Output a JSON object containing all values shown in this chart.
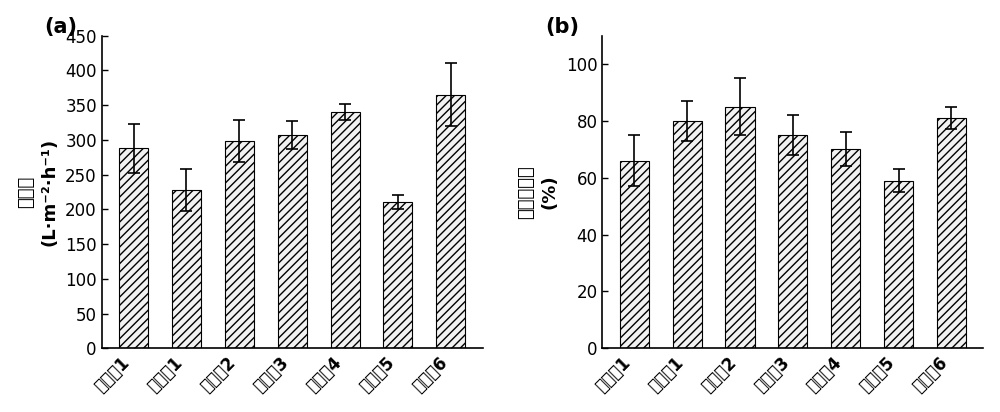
{
  "categories": [
    "对比例1",
    "实施例1",
    "实施例2",
    "实施例3",
    "实施例4",
    "实施例5",
    "实施例6"
  ],
  "flux_values": [
    288,
    228,
    298,
    307,
    340,
    210,
    365
  ],
  "flux_errors": [
    35,
    30,
    30,
    20,
    12,
    10,
    45
  ],
  "flux_ylabel_main": "水通量",
  "flux_ylabel_unit": "(L·m⁻²·h⁻¹)",
  "flux_ylim": [
    0,
    450
  ],
  "flux_yticks": [
    0,
    50,
    100,
    150,
    200,
    250,
    300,
    350,
    400,
    450
  ],
  "recovery_values": [
    66,
    80,
    85,
    75,
    70,
    59,
    81
  ],
  "recovery_errors": [
    9,
    7,
    10,
    7,
    6,
    4,
    4
  ],
  "recovery_ylabel_main": "通量恢复率",
  "recovery_ylabel_unit": "(%)",
  "recovery_ylim": [
    0,
    110
  ],
  "recovery_yticks": [
    0,
    20,
    40,
    60,
    80,
    100
  ],
  "label_a": "(a)",
  "label_b": "(b)",
  "hatch_pattern": "////",
  "bar_facecolor": "#f2f2f2",
  "bar_edgecolor": "#000000",
  "error_color": "#000000",
  "bg_color": "#ffffff",
  "bar_width": 0.55,
  "tick_fontsize": 12,
  "label_fontsize": 13,
  "panel_label_fontsize": 15
}
